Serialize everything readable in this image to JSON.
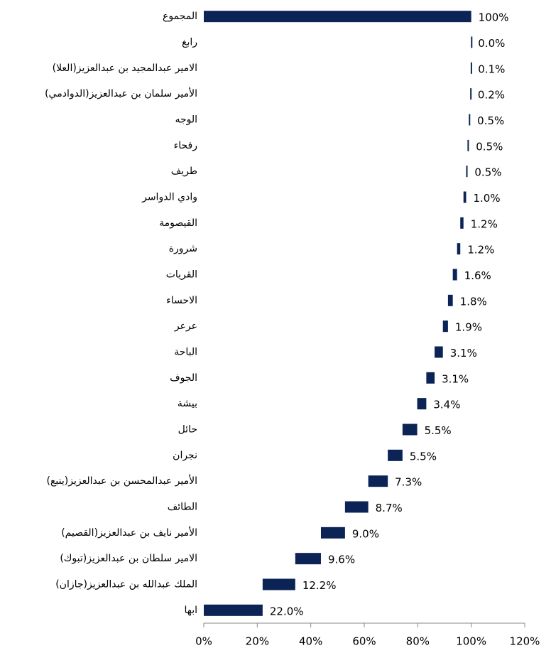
{
  "chart_data": {
    "type": "waterfall",
    "orientation": "horizontal",
    "color": "#0c2356",
    "categories": [
      "ابها",
      "الملك  عبدالله بن عبدالعزيز(جازان)",
      "الامير  سلطان بن عبدالعزيز(تبوك)",
      "الأمير  نايف بن عبدالعزيز(القصيم)",
      "الطائف",
      "الأمير  عبدالمحسن بن عبدالعزيز(ينبع)",
      "نجران",
      "حائل",
      "بيشة",
      "الجوف",
      "الباحة",
      "عرعر",
      "الاحساء",
      "القريات",
      "شرورة",
      "القيصومة",
      "وادي الدواسر",
      "طريف",
      "رفحاء",
      "الوجه",
      "الأمير  سلمان بن عبدالعزيز(الدوادمي)",
      "الامير  عبدالمجيد بن عبدالعزيز(العلا)",
      "رابغ",
      "المجموع"
    ],
    "values": [
      22.0,
      12.2,
      9.6,
      9.0,
      8.7,
      7.3,
      5.5,
      5.5,
      3.4,
      3.1,
      3.1,
      1.9,
      1.8,
      1.6,
      1.2,
      1.2,
      1.0,
      0.5,
      0.5,
      0.5,
      0.2,
      0.1,
      0.0,
      100
    ],
    "value_labels": [
      "22.0%",
      "12.2%",
      "9.6%",
      "9.0%",
      "8.7%",
      "7.3%",
      "5.5%",
      "5.5%",
      "3.4%",
      "3.1%",
      "3.1%",
      "1.9%",
      "1.8%",
      "1.6%",
      "1.2%",
      "1.2%",
      "1.0%",
      "0.5%",
      "0.5%",
      "0.5%",
      "0.2%",
      "0.1%",
      "0.0%",
      "100%"
    ],
    "xlim": [
      0,
      120
    ],
    "xticks": [
      {
        "value": 0,
        "label": "0%"
      },
      {
        "value": 20,
        "label": "20%"
      },
      {
        "value": 40,
        "label": "40%"
      },
      {
        "value": 60,
        "label": "60%"
      },
      {
        "value": 80,
        "label": "80%"
      },
      {
        "value": 100,
        "label": "100%"
      },
      {
        "value": 120,
        "label": "120%"
      }
    ]
  }
}
